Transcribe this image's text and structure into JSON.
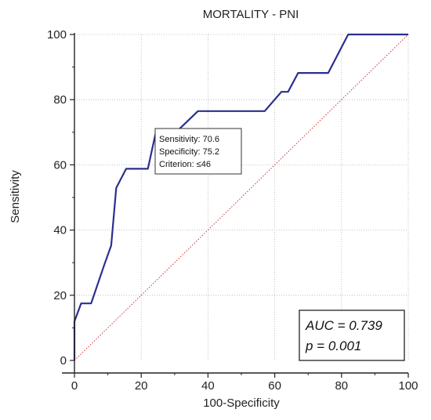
{
  "chart_data": {
    "type": "line",
    "title": "MORTALITY - PNI",
    "xlabel": "100-Specificity",
    "ylabel": "Sensitivity",
    "xlim": [
      0,
      100
    ],
    "ylim": [
      0,
      100
    ],
    "x_ticks": [
      0,
      20,
      40,
      60,
      80,
      100
    ],
    "y_ticks": [
      0,
      20,
      40,
      60,
      80,
      100
    ],
    "grid": true,
    "series": [
      {
        "role": "roc-curve",
        "color": "#2b2f8f",
        "points": [
          [
            0,
            0
          ],
          [
            0,
            12
          ],
          [
            2,
            17.5
          ],
          [
            5,
            17.5
          ],
          [
            7,
            23.5
          ],
          [
            9,
            29.5
          ],
          [
            11,
            35.3
          ],
          [
            12.5,
            52.9
          ],
          [
            15.5,
            58.8
          ],
          [
            22,
            58.8
          ],
          [
            24.5,
            70.6
          ],
          [
            31,
            70.6
          ],
          [
            37,
            76.5
          ],
          [
            57,
            76.5
          ],
          [
            62,
            82.4
          ],
          [
            64,
            82.4
          ],
          [
            67,
            88.2
          ],
          [
            76,
            88.2
          ],
          [
            82,
            100
          ],
          [
            100,
            100
          ]
        ]
      },
      {
        "role": "reference-diagonal",
        "color": "#cc3333",
        "points": [
          [
            0,
            0
          ],
          [
            100,
            100
          ]
        ]
      }
    ],
    "annotations": {
      "tooltip": {
        "anchor": [
          24.5,
          70.6
        ],
        "lines": [
          "Sensitivity: 70.6",
          "Specificity: 75.2",
          "Criterion: ≤46"
        ]
      },
      "stats": [
        "AUC = 0.739",
        "p = 0.001"
      ]
    }
  }
}
